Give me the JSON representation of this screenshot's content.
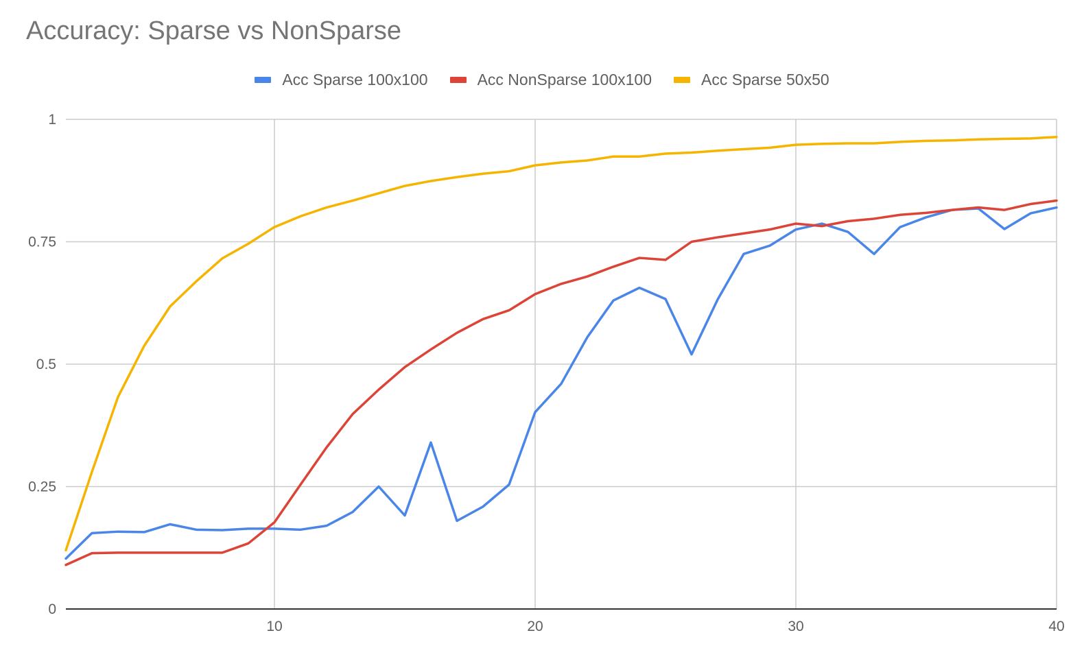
{
  "chart_data": {
    "type": "line",
    "title": "Accuracy: Sparse vs NonSparse",
    "xlabel": "",
    "ylabel": "",
    "xlim": [
      2,
      40
    ],
    "ylim": [
      0,
      1
    ],
    "x_ticks": [
      "10",
      "20",
      "30",
      "40"
    ],
    "x_tick_values": [
      10,
      20,
      30,
      40
    ],
    "y_ticks": [
      "0",
      "0.25",
      "0.5",
      "0.75",
      "1"
    ],
    "y_tick_values": [
      0,
      0.25,
      0.5,
      0.75,
      1
    ],
    "grid": true,
    "legend_position": "top",
    "x": [
      2,
      3,
      4,
      5,
      6,
      7,
      8,
      9,
      10,
      11,
      12,
      13,
      14,
      15,
      16,
      17,
      18,
      19,
      20,
      21,
      22,
      23,
      24,
      25,
      26,
      27,
      28,
      29,
      30,
      31,
      32,
      33,
      34,
      35,
      36,
      37,
      38,
      39,
      40
    ],
    "series": [
      {
        "name": "Acc Sparse 100x100",
        "color": "#4a86e8",
        "values": [
          0.103,
          0.155,
          0.158,
          0.157,
          0.173,
          0.162,
          0.161,
          0.164,
          0.164,
          0.162,
          0.17,
          0.198,
          0.25,
          0.191,
          0.34,
          0.18,
          0.209,
          0.254,
          0.402,
          0.46,
          0.555,
          0.63,
          0.656,
          0.633,
          0.52,
          0.632,
          0.725,
          0.742,
          0.775,
          0.787,
          0.77,
          0.725,
          0.78,
          0.8,
          0.815,
          0.818,
          0.776,
          0.808,
          0.82
        ]
      },
      {
        "name": "Acc NonSparse 100x100",
        "color": "#db4437",
        "values": [
          0.09,
          0.114,
          0.115,
          0.115,
          0.115,
          0.115,
          0.115,
          0.134,
          0.177,
          0.254,
          0.33,
          0.398,
          0.448,
          0.494,
          0.53,
          0.564,
          0.592,
          0.61,
          0.643,
          0.664,
          0.679,
          0.699,
          0.717,
          0.713,
          0.75,
          0.759,
          0.767,
          0.775,
          0.787,
          0.782,
          0.792,
          0.797,
          0.805,
          0.809,
          0.815,
          0.82,
          0.815,
          0.827,
          0.834
        ]
      },
      {
        "name": "Acc Sparse 50x50",
        "color": "#f4b400",
        "values": [
          0.12,
          0.28,
          0.433,
          0.537,
          0.618,
          0.669,
          0.716,
          0.746,
          0.78,
          0.802,
          0.82,
          0.834,
          0.849,
          0.864,
          0.874,
          0.882,
          0.889,
          0.894,
          0.906,
          0.912,
          0.916,
          0.924,
          0.924,
          0.93,
          0.932,
          0.936,
          0.939,
          0.942,
          0.948,
          0.95,
          0.951,
          0.951,
          0.954,
          0.956,
          0.957,
          0.959,
          0.96,
          0.961,
          0.964
        ]
      }
    ]
  }
}
